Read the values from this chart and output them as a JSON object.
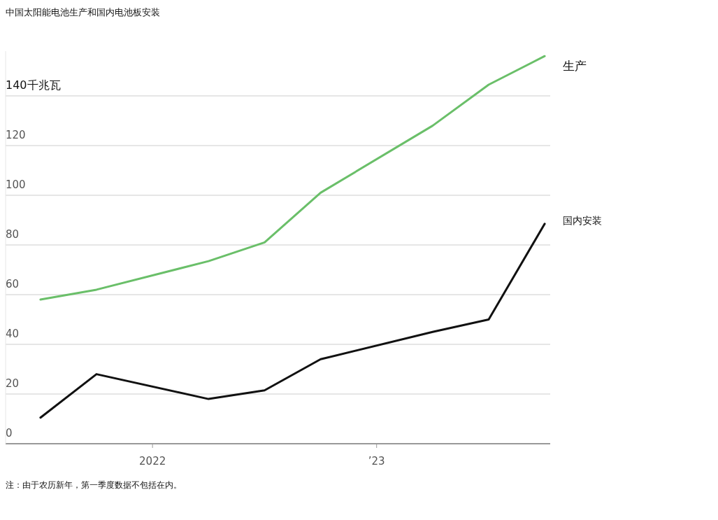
{
  "chart_data": {
    "type": "line",
    "title": "中国太阳能电池生产和国内电池板安装",
    "annotations": [
      "注：由于农历新年，第一季度数据不包括在内。"
    ],
    "xlim": [
      "2021-05-05",
      "2023-10-10"
    ],
    "xticks": [
      {
        "value": "2022-01",
        "label": "2022"
      },
      {
        "value": "2023-01",
        "label": "’23"
      }
    ],
    "yticks": [
      0,
      20,
      40,
      60,
      80,
      100,
      120,
      {
        "value": 140,
        "label": "140千兆瓦"
      }
    ],
    "ylim": [
      0,
      158
    ],
    "grid": "y",
    "legend": false,
    "series": [
      {
        "name": "生产",
        "color": "#6abf69",
        "x": [
          "2021-07",
          "2021-10",
          "2022-04",
          "2022-07",
          "2022-10",
          "2023-04",
          "2023-07",
          "2023-10"
        ],
        "values": [
          58,
          62,
          73.5,
          81,
          101,
          128,
          144.5,
          156
        ]
      },
      {
        "name": "国内安装",
        "color": "#111111",
        "x": [
          "2021-07",
          "2021-10",
          "2022-04",
          "2022-07",
          "2022-10",
          "2023-04",
          "2023-07",
          "2023-10"
        ],
        "values": [
          10.5,
          28,
          18,
          21.5,
          34,
          45,
          50,
          88.5
        ]
      }
    ]
  }
}
